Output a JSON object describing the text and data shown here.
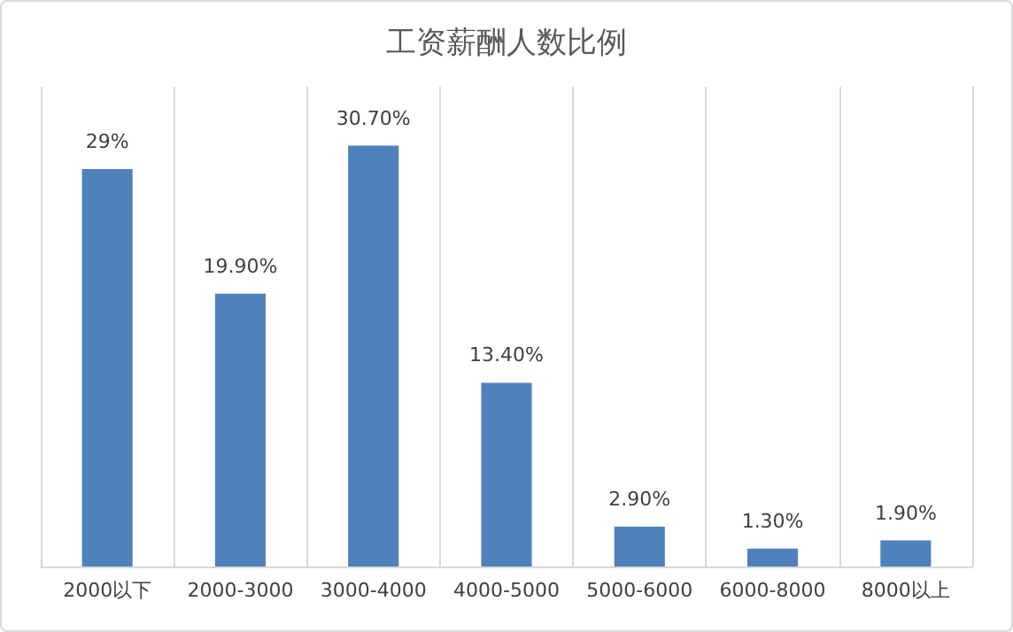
{
  "chart_data": {
    "type": "bar",
    "title": "工资薪酬人数比例",
    "categories": [
      "2000以下",
      "2000-3000",
      "3000-4000",
      "4000-5000",
      "5000-6000",
      "6000-8000",
      "8000以上"
    ],
    "values": [
      29,
      19.9,
      30.7,
      13.4,
      2.9,
      1.3,
      1.9
    ],
    "value_labels": [
      "29%",
      "19.90%",
      "30.70%",
      "13.40%",
      "2.90%",
      "1.30%",
      "1.90%"
    ],
    "color": "#4f81bd",
    "grid": "x",
    "tick_labels": "x"
  }
}
